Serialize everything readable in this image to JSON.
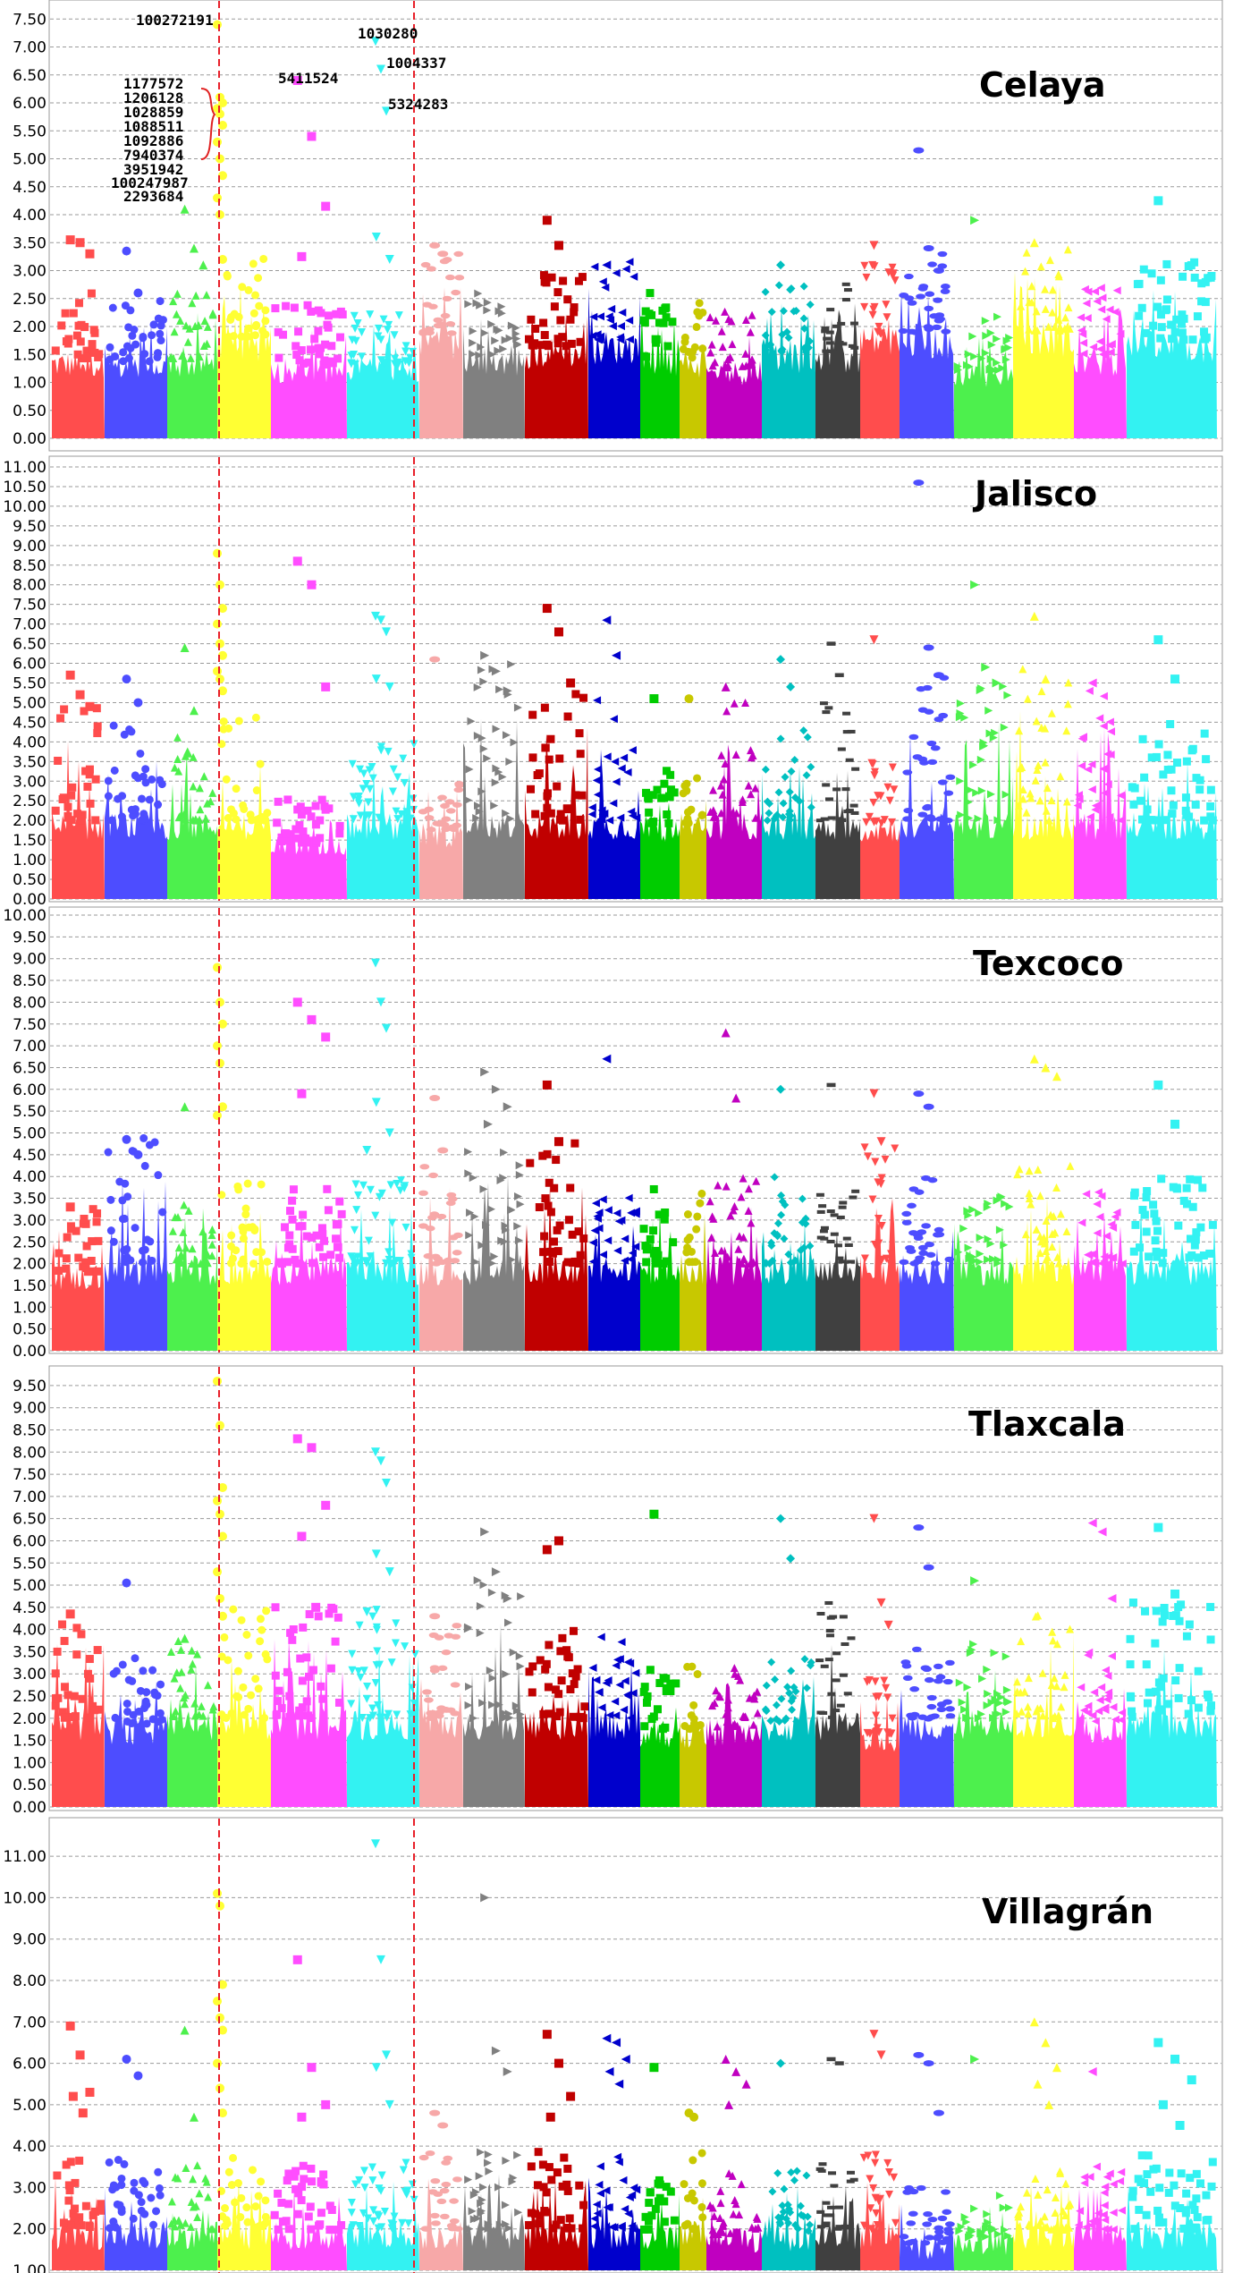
{
  "chart_data": [
    {
      "type": "scatter",
      "title": "Celaya",
      "ylim": [
        0,
        7.6
      ],
      "y_ticks": [
        "0.00",
        "0.50",
        "1.00",
        "1.50",
        "2.00",
        "2.50",
        "3.00",
        "3.50",
        "4.00",
        "4.50",
        "5.00",
        "5.50",
        "6.00",
        "6.50",
        "7.00",
        "7.50"
      ],
      "grid": true,
      "background_max": [
        2.6,
        2.5,
        2.6,
        3.3,
        2.4,
        2.4,
        3.4,
        2.7,
        3.0,
        3.2,
        2.6,
        2.6,
        2.3,
        2.8,
        2.8,
        3.4,
        3.4,
        2.2,
        3.5,
        2.7,
        3.2
      ],
      "highlights": [
        {
          "chr": 1,
          "values": [
            3.55,
            3.5,
            3.3
          ]
        },
        {
          "chr": 2,
          "values": [
            3.35,
            2.6
          ]
        },
        {
          "chr": 3,
          "values": [
            4.1,
            3.4,
            3.1
          ]
        },
        {
          "chr": 4,
          "values": [
            7.4,
            6.1,
            6.0,
            5.9,
            5.8,
            5.6,
            5.3,
            5.0,
            4.7,
            4.3,
            4.0,
            3.2
          ]
        },
        {
          "chr": 5,
          "values": [
            6.4,
            5.4,
            4.15,
            3.25
          ]
        },
        {
          "chr": 6,
          "values": [
            7.1,
            6.6,
            5.85,
            3.6,
            3.2
          ]
        },
        {
          "chr": 7,
          "values": [
            3.45,
            3.3
          ]
        },
        {
          "chr": 9,
          "values": [
            3.9,
            3.45
          ]
        },
        {
          "chr": 10,
          "values": [
            3.1
          ]
        },
        {
          "chr": 14,
          "values": [
            3.1
          ]
        },
        {
          "chr": 16,
          "values": [
            3.45
          ]
        },
        {
          "chr": 17,
          "values": [
            5.15,
            3.4,
            3.0
          ]
        },
        {
          "chr": 18,
          "values": [
            3.9
          ]
        },
        {
          "chr": 19,
          "values": [
            3.5
          ]
        },
        {
          "chr": 21,
          "values": [
            4.25
          ]
        }
      ],
      "annotations": [
        "100272191",
        "1030280",
        "1004337",
        "5411524",
        "5324283",
        "1177572",
        "1206128",
        "1028859",
        "1088511",
        "1092886",
        "7940374",
        "3951942",
        "100247987",
        "2293684"
      ]
    },
    {
      "type": "scatter",
      "title": "Jalisco",
      "ylim": [
        0,
        11.0
      ],
      "y_ticks": [
        "0.00",
        "0.50",
        "1.00",
        "1.50",
        "2.00",
        "2.50",
        "3.00",
        "3.50",
        "4.00",
        "4.50",
        "5.00",
        "5.50",
        "6.00",
        "6.50",
        "7.00",
        "7.50",
        "8.00",
        "8.50",
        "9.00",
        "9.50",
        "10.00",
        "10.50",
        "11.00"
      ],
      "grid": true,
      "background_max": [
        5.0,
        4.5,
        4.6,
        5.0,
        2.6,
        4.1,
        3.2,
        6.0,
        5.5,
        5.2,
        3.5,
        3.5,
        5.0,
        4.3,
        5.5,
        3.5,
        5.7,
        5.8,
        6.0,
        5.4,
        4.5
      ],
      "highlights": [
        {
          "chr": 1,
          "values": [
            5.7,
            5.2,
            4.9
          ]
        },
        {
          "chr": 2,
          "values": [
            5.6,
            5.0
          ]
        },
        {
          "chr": 3,
          "values": [
            6.4,
            4.8
          ]
        },
        {
          "chr": 4,
          "values": [
            8.8,
            8.0,
            7.4,
            7.0,
            6.5,
            6.2,
            5.8,
            5.6,
            5.3
          ]
        },
        {
          "chr": 5,
          "values": [
            8.6,
            8.0,
            5.4
          ]
        },
        {
          "chr": 6,
          "values": [
            7.2,
            7.1,
            6.8,
            5.6,
            5.4
          ]
        },
        {
          "chr": 7,
          "values": [
            6.1
          ]
        },
        {
          "chr": 8,
          "values": [
            6.2,
            5.8,
            5.3
          ]
        },
        {
          "chr": 9,
          "values": [
            7.4,
            6.8,
            5.5
          ]
        },
        {
          "chr": 10,
          "values": [
            7.1,
            6.2
          ]
        },
        {
          "chr": 11,
          "values": [
            5.1
          ]
        },
        {
          "chr": 12,
          "values": [
            5.1
          ]
        },
        {
          "chr": 13,
          "values": [
            5.4
          ]
        },
        {
          "chr": 14,
          "values": [
            6.1,
            5.4
          ]
        },
        {
          "chr": 15,
          "values": [
            6.5,
            5.7
          ]
        },
        {
          "chr": 16,
          "values": [
            6.6
          ]
        },
        {
          "chr": 17,
          "values": [
            10.6,
            6.4,
            5.7
          ]
        },
        {
          "chr": 18,
          "values": [
            8.0,
            5.9,
            5.5
          ]
        },
        {
          "chr": 19,
          "values": [
            7.2,
            5.6
          ]
        },
        {
          "chr": 20,
          "values": [
            5.5
          ]
        },
        {
          "chr": 21,
          "values": [
            6.6,
            5.6
          ]
        }
      ]
    },
    {
      "type": "scatter",
      "title": "Texcoco",
      "ylim": [
        0,
        10.0
      ],
      "y_ticks": [
        "0.00",
        "0.50",
        "1.00",
        "1.50",
        "2.00",
        "2.50",
        "3.00",
        "3.50",
        "4.00",
        "4.50",
        "5.00",
        "5.50",
        "6.00",
        "6.50",
        "7.00",
        "7.50",
        "8.00",
        "8.50",
        "9.00",
        "9.50",
        "10.00"
      ],
      "grid": true,
      "background_max": [
        3.3,
        4.9,
        4.0,
        4.0,
        3.8,
        4.0,
        4.6,
        5.0,
        4.8,
        4.0,
        3.9,
        4.2,
        4.0,
        4.0,
        3.7,
        4.8,
        4.0,
        3.6,
        4.3,
        3.8,
        4.0
      ],
      "highlights": [
        {
          "chr": 1,
          "values": [
            3.3
          ]
        },
        {
          "chr": 2,
          "values": [
            4.85,
            4.5
          ]
        },
        {
          "chr": 3,
          "values": [
            5.6
          ]
        },
        {
          "chr": 4,
          "values": [
            8.8,
            8.0,
            7.5,
            7.0,
            6.6,
            5.6,
            5.4
          ]
        },
        {
          "chr": 5,
          "values": [
            8.0,
            7.6,
            7.2,
            5.9
          ]
        },
        {
          "chr": 6,
          "values": [
            8.9,
            8.0,
            7.4,
            5.7,
            5.0,
            4.6
          ]
        },
        {
          "chr": 7,
          "values": [
            5.8,
            4.6
          ]
        },
        {
          "chr": 8,
          "values": [
            6.4,
            6.0,
            5.6,
            5.2
          ]
        },
        {
          "chr": 9,
          "values": [
            6.1,
            4.8
          ]
        },
        {
          "chr": 10,
          "values": [
            6.7
          ]
        },
        {
          "chr": 13,
          "values": [
            7.3,
            5.8
          ]
        },
        {
          "chr": 14,
          "values": [
            6.0
          ]
        },
        {
          "chr": 15,
          "values": [
            6.1
          ]
        },
        {
          "chr": 16,
          "values": [
            5.9,
            4.8
          ]
        },
        {
          "chr": 17,
          "values": [
            5.9,
            5.6
          ]
        },
        {
          "chr": 19,
          "values": [
            6.7,
            6.5,
            6.3
          ]
        },
        {
          "chr": 21,
          "values": [
            6.1,
            5.2
          ]
        }
      ]
    },
    {
      "type": "scatter",
      "title": "Tlaxcala",
      "ylim": [
        0,
        9.7
      ],
      "y_ticks": [
        "0.00",
        "0.50",
        "1.00",
        "1.50",
        "2.00",
        "2.50",
        "3.00",
        "3.50",
        "4.00",
        "4.50",
        "5.00",
        "5.50",
        "6.00",
        "6.50",
        "7.00",
        "7.50",
        "8.00",
        "8.50",
        "9.00",
        "9.50"
      ],
      "grid": true,
      "background_max": [
        4.4,
        3.4,
        3.8,
        4.5,
        4.6,
        4.5,
        4.3,
        5.3,
        4.0,
        4.0,
        3.2,
        3.2,
        3.3,
        3.5,
        4.6,
        3.0,
        3.6,
        3.8,
        4.8,
        3.5,
        4.8
      ],
      "highlights": [
        {
          "chr": 1,
          "values": [
            4.35
          ]
        },
        {
          "chr": 2,
          "values": [
            5.05
          ]
        },
        {
          "chr": 3,
          "values": [
            3.8
          ]
        },
        {
          "chr": 4,
          "values": [
            9.6,
            8.6,
            7.2,
            6.9,
            6.6,
            6.1,
            5.3,
            4.7,
            4.3
          ]
        },
        {
          "chr": 5,
          "values": [
            8.3,
            8.1,
            6.8,
            6.1,
            4.5
          ]
        },
        {
          "chr": 6,
          "values": [
            8.0,
            7.8,
            7.3,
            5.7,
            5.3,
            4.4
          ]
        },
        {
          "chr": 7,
          "values": [
            4.3
          ]
        },
        {
          "chr": 8,
          "values": [
            6.2,
            5.3,
            4.7
          ]
        },
        {
          "chr": 9,
          "values": [
            5.8,
            6.0
          ]
        },
        {
          "chr": 11,
          "values": [
            6.6
          ]
        },
        {
          "chr": 14,
          "values": [
            6.5,
            5.6
          ]
        },
        {
          "chr": 16,
          "values": [
            6.5,
            4.6,
            4.1
          ]
        },
        {
          "chr": 17,
          "values": [
            6.3,
            5.4
          ]
        },
        {
          "chr": 18,
          "values": [
            5.1
          ]
        },
        {
          "chr": 20,
          "values": [
            6.4,
            6.2,
            4.7
          ]
        },
        {
          "chr": 21,
          "values": [
            6.3,
            4.8
          ]
        }
      ]
    },
    {
      "type": "scatter",
      "title": "Villagrán",
      "ylim": [
        1.0,
        11.5
      ],
      "y_ticks": [
        "1.00",
        "2.00",
        "3.00",
        "4.00",
        "5.00",
        "6.00",
        "7.00",
        "8.00",
        "9.00",
        "10.00",
        "11.00"
      ],
      "grid": true,
      "background_max": [
        3.8,
        3.8,
        3.7,
        3.8,
        3.6,
        3.8,
        4.0,
        4.0,
        4.0,
        3.8,
        3.6,
        3.9,
        3.4,
        3.5,
        3.7,
        3.8,
        3.0,
        3.2,
        3.6,
        3.6,
        3.8
      ],
      "highlights": [
        {
          "chr": 1,
          "values": [
            6.9,
            6.2,
            5.3,
            5.2,
            4.8
          ]
        },
        {
          "chr": 2,
          "values": [
            6.1,
            5.7
          ]
        },
        {
          "chr": 3,
          "values": [
            6.8,
            4.7
          ]
        },
        {
          "chr": 4,
          "values": [
            10.1,
            9.8,
            7.9,
            7.5,
            7.1,
            6.8,
            6.0,
            5.4,
            4.8
          ]
        },
        {
          "chr": 5,
          "values": [
            8.5,
            5.9,
            5.0,
            4.7
          ]
        },
        {
          "chr": 6,
          "values": [
            11.3,
            8.5,
            6.2,
            5.9,
            5.0
          ]
        },
        {
          "chr": 7,
          "values": [
            4.8,
            4.5
          ]
        },
        {
          "chr": 8,
          "values": [
            10.0,
            6.3,
            5.8
          ]
        },
        {
          "chr": 9,
          "values": [
            6.7,
            6.0,
            5.2,
            4.7
          ]
        },
        {
          "chr": 10,
          "values": [
            6.6,
            6.5,
            6.1,
            5.8,
            5.5
          ]
        },
        {
          "chr": 11,
          "values": [
            5.9
          ]
        },
        {
          "chr": 12,
          "values": [
            4.8,
            4.7
          ]
        },
        {
          "chr": 13,
          "values": [
            6.1,
            5.8,
            5.5,
            5.0
          ]
        },
        {
          "chr": 14,
          "values": [
            6.0
          ]
        },
        {
          "chr": 15,
          "values": [
            6.1,
            6.0
          ]
        },
        {
          "chr": 16,
          "values": [
            6.7,
            6.2
          ]
        },
        {
          "chr": 17,
          "values": [
            6.2,
            6.0,
            4.8
          ]
        },
        {
          "chr": 18,
          "values": [
            6.1
          ]
        },
        {
          "chr": 19,
          "values": [
            7.0,
            6.5,
            5.9,
            5.5,
            5.0
          ]
        },
        {
          "chr": 20,
          "values": [
            5.8
          ]
        },
        {
          "chr": 21,
          "values": [
            6.5,
            6.1,
            5.6,
            5.0,
            4.5
          ]
        }
      ]
    }
  ],
  "chromosome_colors": [
    "#ff4d4d",
    "#4d4dff",
    "#4df04d",
    "#ffff33",
    "#ff4dff",
    "#33f2f2",
    "#f7a8a8",
    "#808080",
    "#c00000",
    "#0000cc",
    "#00cc00",
    "#c8c800",
    "#c000c0",
    "#00c0c0",
    "#404040",
    "#ff4d4d",
    "#4d4dff",
    "#4df04d",
    "#ffff33",
    "#ff4dff",
    "#33f2f2"
  ],
  "chromosome_markers": [
    "square",
    "circle",
    "triangle-up",
    "circle",
    "square",
    "triangle-down",
    "ellipse",
    "triangle-right",
    "square",
    "triangle-left",
    "square",
    "circle",
    "triangle-up",
    "diamond",
    "dash",
    "triangle-down",
    "ellipse",
    "triangle-right",
    "triangle-up",
    "triangle-left",
    "square"
  ],
  "reference_line_color": "#e8202a"
}
